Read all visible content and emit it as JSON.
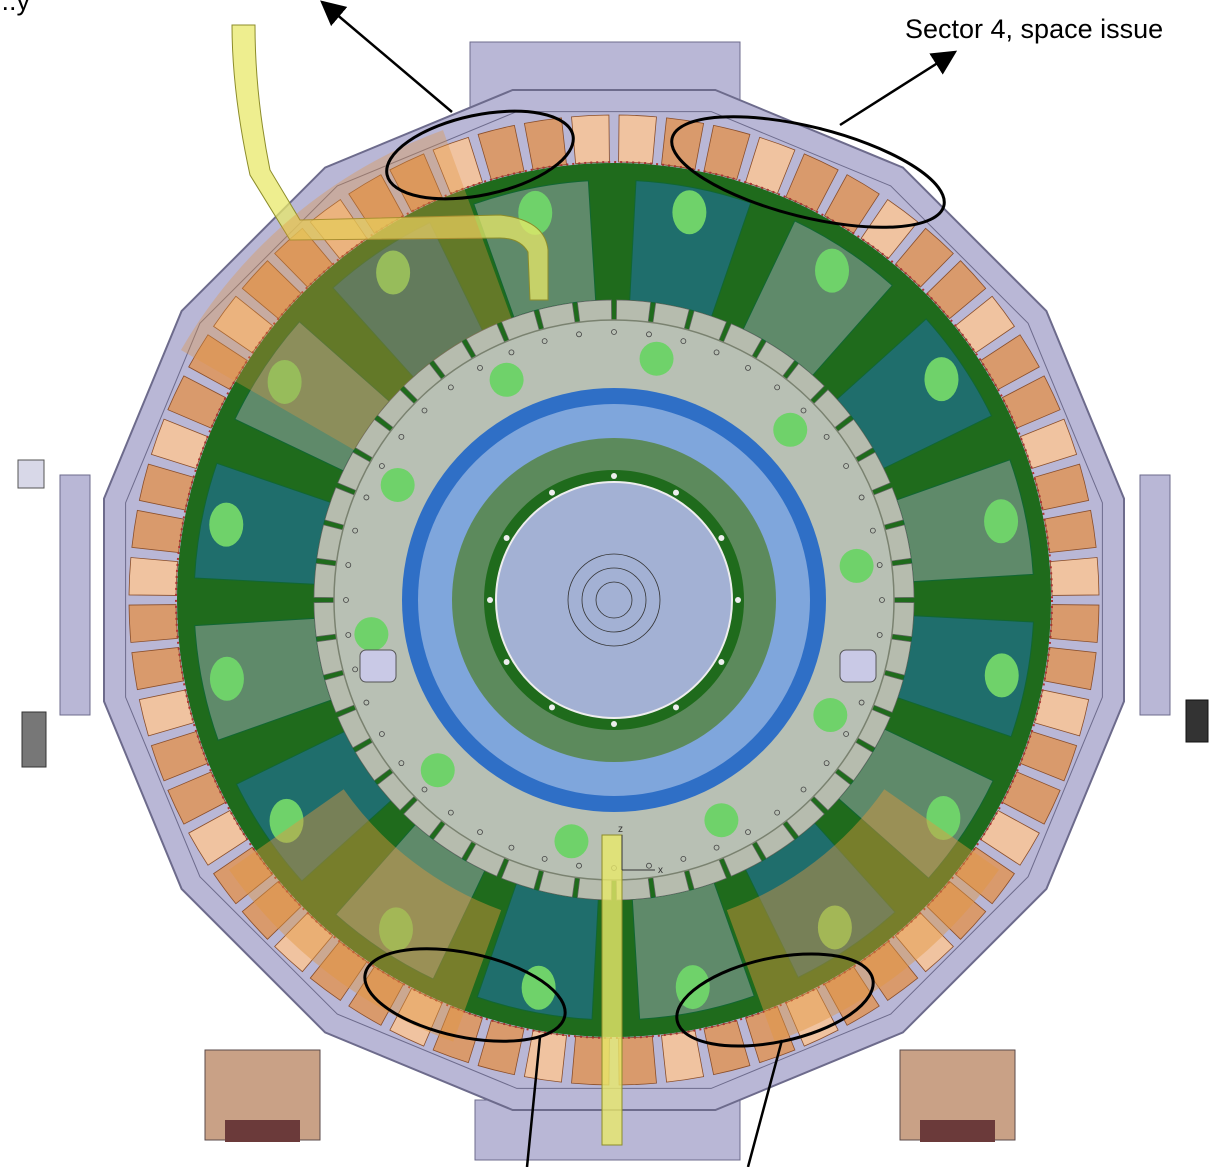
{
  "annotations": {
    "top_left_label": "...y",
    "top_right_label": "Sector 4, space issue"
  },
  "drawing": {
    "description_axis_x": "x",
    "description_axis_z": "z"
  },
  "colors": {
    "outer_frame": "#b9b7d6",
    "frame_outline": "#6d6b8c",
    "coil_orange": "#d99a6c",
    "coil_dark": "#8a4e2a",
    "shield_green": "#1f6b1c",
    "panel_teal": "#1f6e6c",
    "panel_grey_green": "#5f8a6a",
    "inner_disc": "#b8c0b4",
    "blue_ring": "#2f6fc6",
    "light_blue_ring": "#7fa6dc",
    "mid_green_ring": "#5c8a5c",
    "center_blue": "#a3b1d4",
    "highlight_yellow": "#e8e86a",
    "callout_ellipse": "#000000"
  }
}
